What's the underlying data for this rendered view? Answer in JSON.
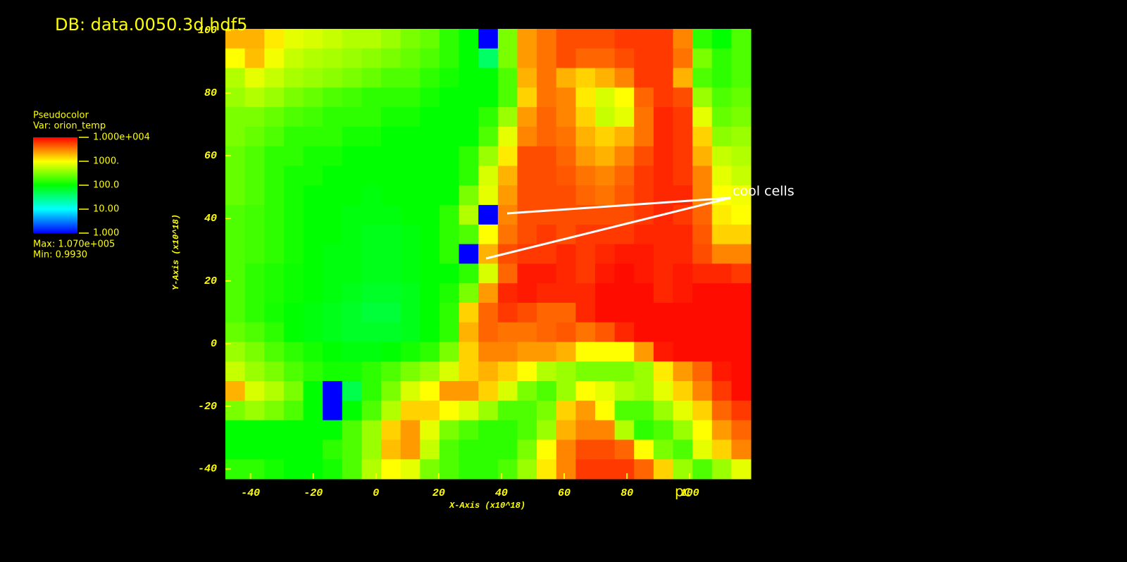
{
  "chart_data": {
    "type": "heatmap",
    "title": "DB: data.0050.3d.hdf5",
    "xlabel": "X-Axis (x10^18)",
    "ylabel": "Y-Axis (x10^18)",
    "xlim": [
      -48,
      119.5
    ],
    "ylim": [
      -43.2,
      100.5
    ],
    "xticks": [
      -40,
      -20,
      0,
      20,
      40,
      60,
      80,
      100
    ],
    "yticks": [
      -40,
      -20,
      0,
      20,
      40,
      60,
      80,
      100
    ],
    "unit_label": "pc",
    "annotation": "cool cells",
    "legend": {
      "plot": "Pseudocolor",
      "var": "Var: orion_temp",
      "ticks": [
        {
          "value": 10000,
          "label": "1.000e+004"
        },
        {
          "value": 1000,
          "label": "1000."
        },
        {
          "value": 100,
          "label": "100.0"
        },
        {
          "value": 10,
          "label": "10.00"
        },
        {
          "value": 1,
          "label": "1.000"
        }
      ],
      "max": "Max:  1.070e+005",
      "min": "Min:  0.9930"
    },
    "colorbar_range": [
      1,
      10000
    ],
    "log_scale": true,
    "colormap": [
      "#0000ff",
      "#00ffff",
      "#00ff00",
      "#ffff00",
      "#ff0000"
    ],
    "z": [
      [
        2000,
        2000,
        1200,
        800,
        700,
        600,
        500,
        500,
        400,
        300,
        250,
        150,
        100,
        1,
        300,
        2500,
        3500,
        5000,
        5000,
        5000,
        6000,
        6000,
        6000,
        3000,
        150,
        100,
        200
      ],
      [
        1000,
        1800,
        900,
        600,
        500,
        450,
        400,
        350,
        300,
        250,
        200,
        150,
        100,
        40,
        300,
        2500,
        3500,
        5000,
        4000,
        4000,
        5000,
        6000,
        6000,
        3500,
        300,
        150,
        200
      ],
      [
        500,
        800,
        600,
        450,
        400,
        350,
        300,
        250,
        200,
        200,
        150,
        120,
        100,
        100,
        200,
        2000,
        3500,
        2000,
        1500,
        2000,
        3000,
        6000,
        6000,
        2000,
        200,
        150,
        200
      ],
      [
        400,
        500,
        400,
        300,
        250,
        200,
        180,
        150,
        150,
        150,
        120,
        100,
        100,
        100,
        200,
        1500,
        3500,
        3000,
        1200,
        700,
        1000,
        4000,
        6000,
        5000,
        400,
        200,
        250
      ],
      [
        300,
        300,
        250,
        200,
        180,
        150,
        150,
        150,
        120,
        120,
        100,
        100,
        100,
        150,
        400,
        2500,
        4000,
        3000,
        1500,
        600,
        800,
        3500,
        7000,
        6000,
        800,
        250,
        300
      ],
      [
        300,
        250,
        200,
        150,
        150,
        150,
        120,
        120,
        100,
        100,
        100,
        100,
        100,
        200,
        800,
        3000,
        4000,
        3500,
        2000,
        1500,
        2000,
        3500,
        7000,
        6000,
        1500,
        350,
        400
      ],
      [
        250,
        200,
        150,
        150,
        120,
        120,
        100,
        100,
        100,
        100,
        100,
        100,
        150,
        400,
        1200,
        5000,
        5000,
        4000,
        2500,
        2000,
        3000,
        5000,
        7000,
        6000,
        2000,
        600,
        500
      ],
      [
        250,
        200,
        150,
        120,
        120,
        100,
        100,
        100,
        100,
        100,
        100,
        100,
        150,
        700,
        2000,
        5000,
        5000,
        4500,
        3500,
        3000,
        4000,
        6000,
        7000,
        6000,
        3000,
        800,
        600
      ],
      [
        250,
        200,
        150,
        120,
        100,
        100,
        100,
        90,
        100,
        100,
        100,
        100,
        300,
        800,
        2500,
        5000,
        5000,
        5000,
        4000,
        3500,
        4500,
        6000,
        7000,
        7000,
        3000,
        1000,
        900
      ],
      [
        200,
        180,
        150,
        120,
        100,
        100,
        90,
        90,
        90,
        100,
        100,
        150,
        500,
        1,
        3000,
        5000,
        5000,
        5000,
        5000,
        5000,
        5000,
        6000,
        7000,
        6000,
        4000,
        1200,
        1000
      ],
      [
        200,
        180,
        150,
        120,
        100,
        100,
        90,
        80,
        80,
        90,
        100,
        150,
        200,
        1000,
        3500,
        5000,
        6000,
        5000,
        6000,
        6000,
        6000,
        7000,
        7000,
        7000,
        4500,
        1500,
        1500
      ],
      [
        200,
        180,
        150,
        120,
        100,
        90,
        90,
        80,
        80,
        90,
        100,
        150,
        1,
        2000,
        5000,
        6000,
        6000,
        7000,
        6000,
        7000,
        8000,
        8000,
        7000,
        7000,
        5000,
        3000,
        3000
      ],
      [
        200,
        150,
        130,
        110,
        100,
        90,
        90,
        80,
        80,
        90,
        100,
        100,
        150,
        700,
        4000,
        8000,
        8000,
        7000,
        6000,
        8000,
        9000,
        8000,
        7000,
        8000,
        7000,
        7000,
        6000
      ],
      [
        200,
        150,
        130,
        110,
        100,
        90,
        80,
        70,
        70,
        80,
        100,
        130,
        300,
        2500,
        7000,
        8000,
        7000,
        7000,
        7000,
        9000,
        9000,
        9000,
        7000,
        8000,
        9000,
        9000,
        9000
      ],
      [
        200,
        150,
        120,
        100,
        90,
        80,
        70,
        60,
        60,
        80,
        100,
        150,
        1500,
        4000,
        6000,
        5000,
        4000,
        4000,
        7000,
        9000,
        9000,
        9000,
        9000,
        9000,
        9000,
        9000,
        9000
      ],
      [
        250,
        200,
        150,
        100,
        90,
        80,
        70,
        70,
        70,
        80,
        100,
        150,
        2000,
        4000,
        3500,
        3500,
        4000,
        4500,
        3500,
        4500,
        7000,
        9000,
        9000,
        9000,
        9000,
        9000,
        9000
      ],
      [
        400,
        300,
        200,
        150,
        120,
        100,
        90,
        90,
        100,
        120,
        150,
        300,
        1500,
        3000,
        3000,
        2500,
        2500,
        2000,
        1000,
        1000,
        1000,
        2500,
        8000,
        9000,
        9000,
        9000,
        9000
      ],
      [
        600,
        400,
        300,
        200,
        150,
        120,
        120,
        150,
        200,
        300,
        400,
        700,
        1500,
        2000,
        1500,
        1000,
        500,
        400,
        300,
        300,
        300,
        400,
        1200,
        2500,
        4000,
        8000,
        9000
      ],
      [
        2000,
        700,
        500,
        300,
        100,
        1,
        50,
        150,
        300,
        700,
        1000,
        2500,
        2500,
        1500,
        700,
        300,
        200,
        400,
        1000,
        800,
        500,
        400,
        800,
        1500,
        3000,
        6000,
        9000
      ],
      [
        300,
        400,
        300,
        200,
        100,
        1,
        100,
        200,
        500,
        1500,
        1500,
        1000,
        700,
        400,
        200,
        200,
        300,
        1500,
        2500,
        1000,
        200,
        200,
        400,
        800,
        1500,
        4000,
        6000
      ],
      [
        100,
        100,
        100,
        100,
        100,
        100,
        200,
        400,
        1500,
        2500,
        800,
        300,
        200,
        150,
        150,
        200,
        400,
        2000,
        3000,
        3000,
        500,
        150,
        200,
        400,
        1000,
        2500,
        4000
      ],
      [
        100,
        100,
        100,
        100,
        100,
        150,
        200,
        400,
        1800,
        2500,
        600,
        200,
        150,
        150,
        150,
        300,
        1000,
        3000,
        5000,
        5000,
        4000,
        1000,
        300,
        200,
        800,
        1500,
        3000
      ],
      [
        150,
        150,
        120,
        100,
        100,
        120,
        200,
        500,
        1000,
        800,
        300,
        200,
        150,
        150,
        200,
        400,
        1200,
        3000,
        6000,
        6000,
        6000,
        4000,
        1500,
        400,
        200,
        400,
        800
      ]
    ]
  }
}
